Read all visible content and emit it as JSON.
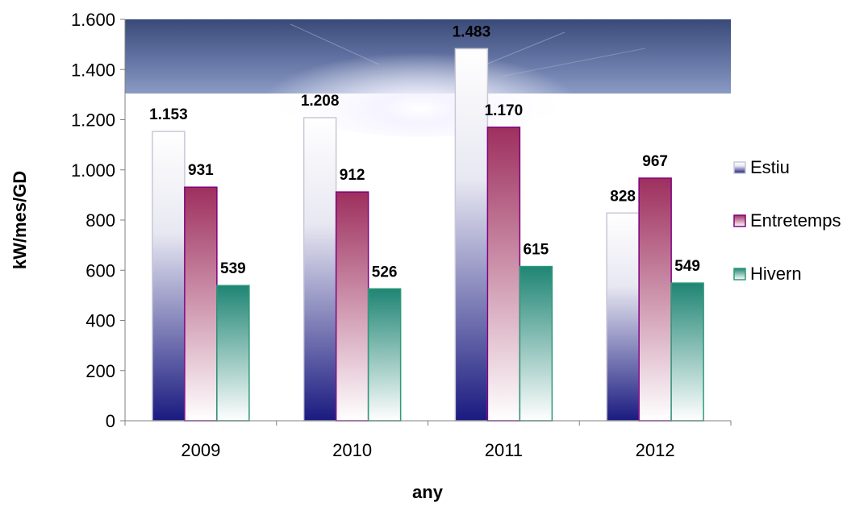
{
  "chart_data": {
    "type": "bar",
    "categories": [
      "2009",
      "2010",
      "2011",
      "2012"
    ],
    "series": [
      {
        "name": "Estiu",
        "values": [
          1153,
          1208,
          1483,
          828
        ],
        "labels": [
          "1.153",
          "1.208",
          "1.483",
          "828"
        ],
        "color_top": "#ffffff",
        "color_bottom": "#1a1a80",
        "stroke": "#c8c8d8"
      },
      {
        "name": "Entretemps",
        "values": [
          931,
          912,
          1170,
          967
        ],
        "labels": [
          "931",
          "912",
          "1.170",
          "967"
        ],
        "color_top": "#9e2f5e",
        "color_bottom": "#ffffff",
        "stroke": "#800080"
      },
      {
        "name": "Hivern",
        "values": [
          539,
          526,
          615,
          549
        ],
        "labels": [
          "539",
          "526",
          "615",
          "549"
        ],
        "color_top": "#1f8574",
        "color_bottom": "#ffffff",
        "stroke": "#2e9a78"
      }
    ],
    "ylim": [
      0,
      1600
    ],
    "yticks": [
      0,
      200,
      400,
      600,
      800,
      1000,
      1200,
      1400,
      1600
    ],
    "ytick_labels": [
      "0",
      "200",
      "400",
      "600",
      "800",
      "1.000",
      "1.200",
      "1.400",
      "1.600"
    ],
    "xlabel": "any",
    "ylabel": "kW/mes/GD",
    "legend_position": "right",
    "grid": false,
    "background": "sky-photo-band-top"
  }
}
